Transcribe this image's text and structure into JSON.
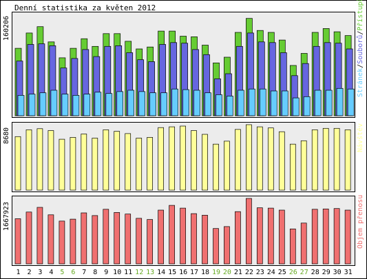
{
  "title": "Denní statistika za květen 2012",
  "colors": {
    "background": "#ffffff",
    "panel_bg": "#ececec",
    "border": "#000000",
    "hits": "#66cc33",
    "files": "#6666e0",
    "pages": "#66ccff",
    "visits": "#ffff99",
    "traffic": "#f07070",
    "weekday_text": "#000000",
    "weekend_text": "#66aa22"
  },
  "chart_data": [
    {
      "type": "bar",
      "panel": "top",
      "ymax_label": "160206",
      "legend_labels": [
        "Stránek",
        "Souborů",
        "Přístupů"
      ],
      "legend_separator": "/",
      "categories": [
        "1",
        "2",
        "3",
        "4",
        "5",
        "6",
        "7",
        "8",
        "9",
        "10",
        "11",
        "12",
        "13",
        "14",
        "15",
        "16",
        "17",
        "18",
        "19",
        "20",
        "21",
        "22",
        "23",
        "24",
        "25",
        "26",
        "27",
        "28",
        "29",
        "30",
        "31"
      ],
      "weekend_days": [
        "5",
        "6",
        "12",
        "13",
        "19",
        "20",
        "26",
        "27"
      ],
      "series": [
        {
          "name": "Přístupů",
          "color_key": "hits",
          "values": [
            106000,
            130000,
            140000,
            116000,
            91000,
            106000,
            121000,
            109000,
            129000,
            129000,
            117000,
            105000,
            108000,
            133000,
            133000,
            125000,
            124000,
            111000,
            83000,
            92000,
            131000,
            153000,
            134000,
            131000,
            119000,
            79000,
            98000,
            131000,
            137000,
            132000,
            126000
          ]
        },
        {
          "name": "Souborů",
          "color_key": "files",
          "values": [
            86000,
            112000,
            113000,
            110000,
            75000,
            90000,
            104000,
            93000,
            109000,
            110000,
            99000,
            88000,
            85000,
            112000,
            115000,
            114000,
            104000,
            96000,
            58000,
            66000,
            109000,
            130000,
            116000,
            115000,
            99000,
            63000,
            82000,
            109000,
            115000,
            114000,
            105000
          ]
        },
        {
          "name": "Stránek",
          "color_key": "pages",
          "values": [
            32000,
            34000,
            36000,
            40000,
            34000,
            32000,
            34000,
            37000,
            35000,
            38000,
            40000,
            38000,
            36000,
            36000,
            42000,
            41000,
            40000,
            36000,
            33000,
            31000,
            40000,
            42000,
            42000,
            39000,
            39000,
            28000,
            30000,
            40000,
            40000,
            43000,
            42000
          ]
        }
      ]
    },
    {
      "type": "bar",
      "panel": "middle",
      "ymax_label": "8680",
      "legend_labels": [
        "Návštěv"
      ],
      "series": [
        {
          "name": "Návštěv",
          "color_key": "visits",
          "values": [
            7100,
            8000,
            8150,
            7900,
            6750,
            7000,
            7450,
            6900,
            8000,
            7800,
            7500,
            6900,
            7000,
            8300,
            8400,
            8500,
            7900,
            7400,
            6100,
            6500,
            8050,
            8680,
            8400,
            8250,
            7750,
            6100,
            6550,
            8000,
            8200,
            8200,
            8000
          ]
        }
      ]
    },
    {
      "type": "bar",
      "panel": "bottom",
      "ymax_label": "1667923",
      "legend_labels": [
        "Objem přenosu"
      ],
      "series": [
        {
          "name": "Objem přenosu",
          "color_key": "traffic",
          "values": [
            1150000,
            1320000,
            1440000,
            1250000,
            1090000,
            1140000,
            1300000,
            1230000,
            1390000,
            1310000,
            1270000,
            1160000,
            1130000,
            1370000,
            1490000,
            1420000,
            1280000,
            1240000,
            900000,
            950000,
            1330000,
            1667923,
            1430000,
            1420000,
            1370000,
            890000,
            1040000,
            1390000,
            1400000,
            1410000,
            1370000
          ]
        }
      ]
    }
  ]
}
